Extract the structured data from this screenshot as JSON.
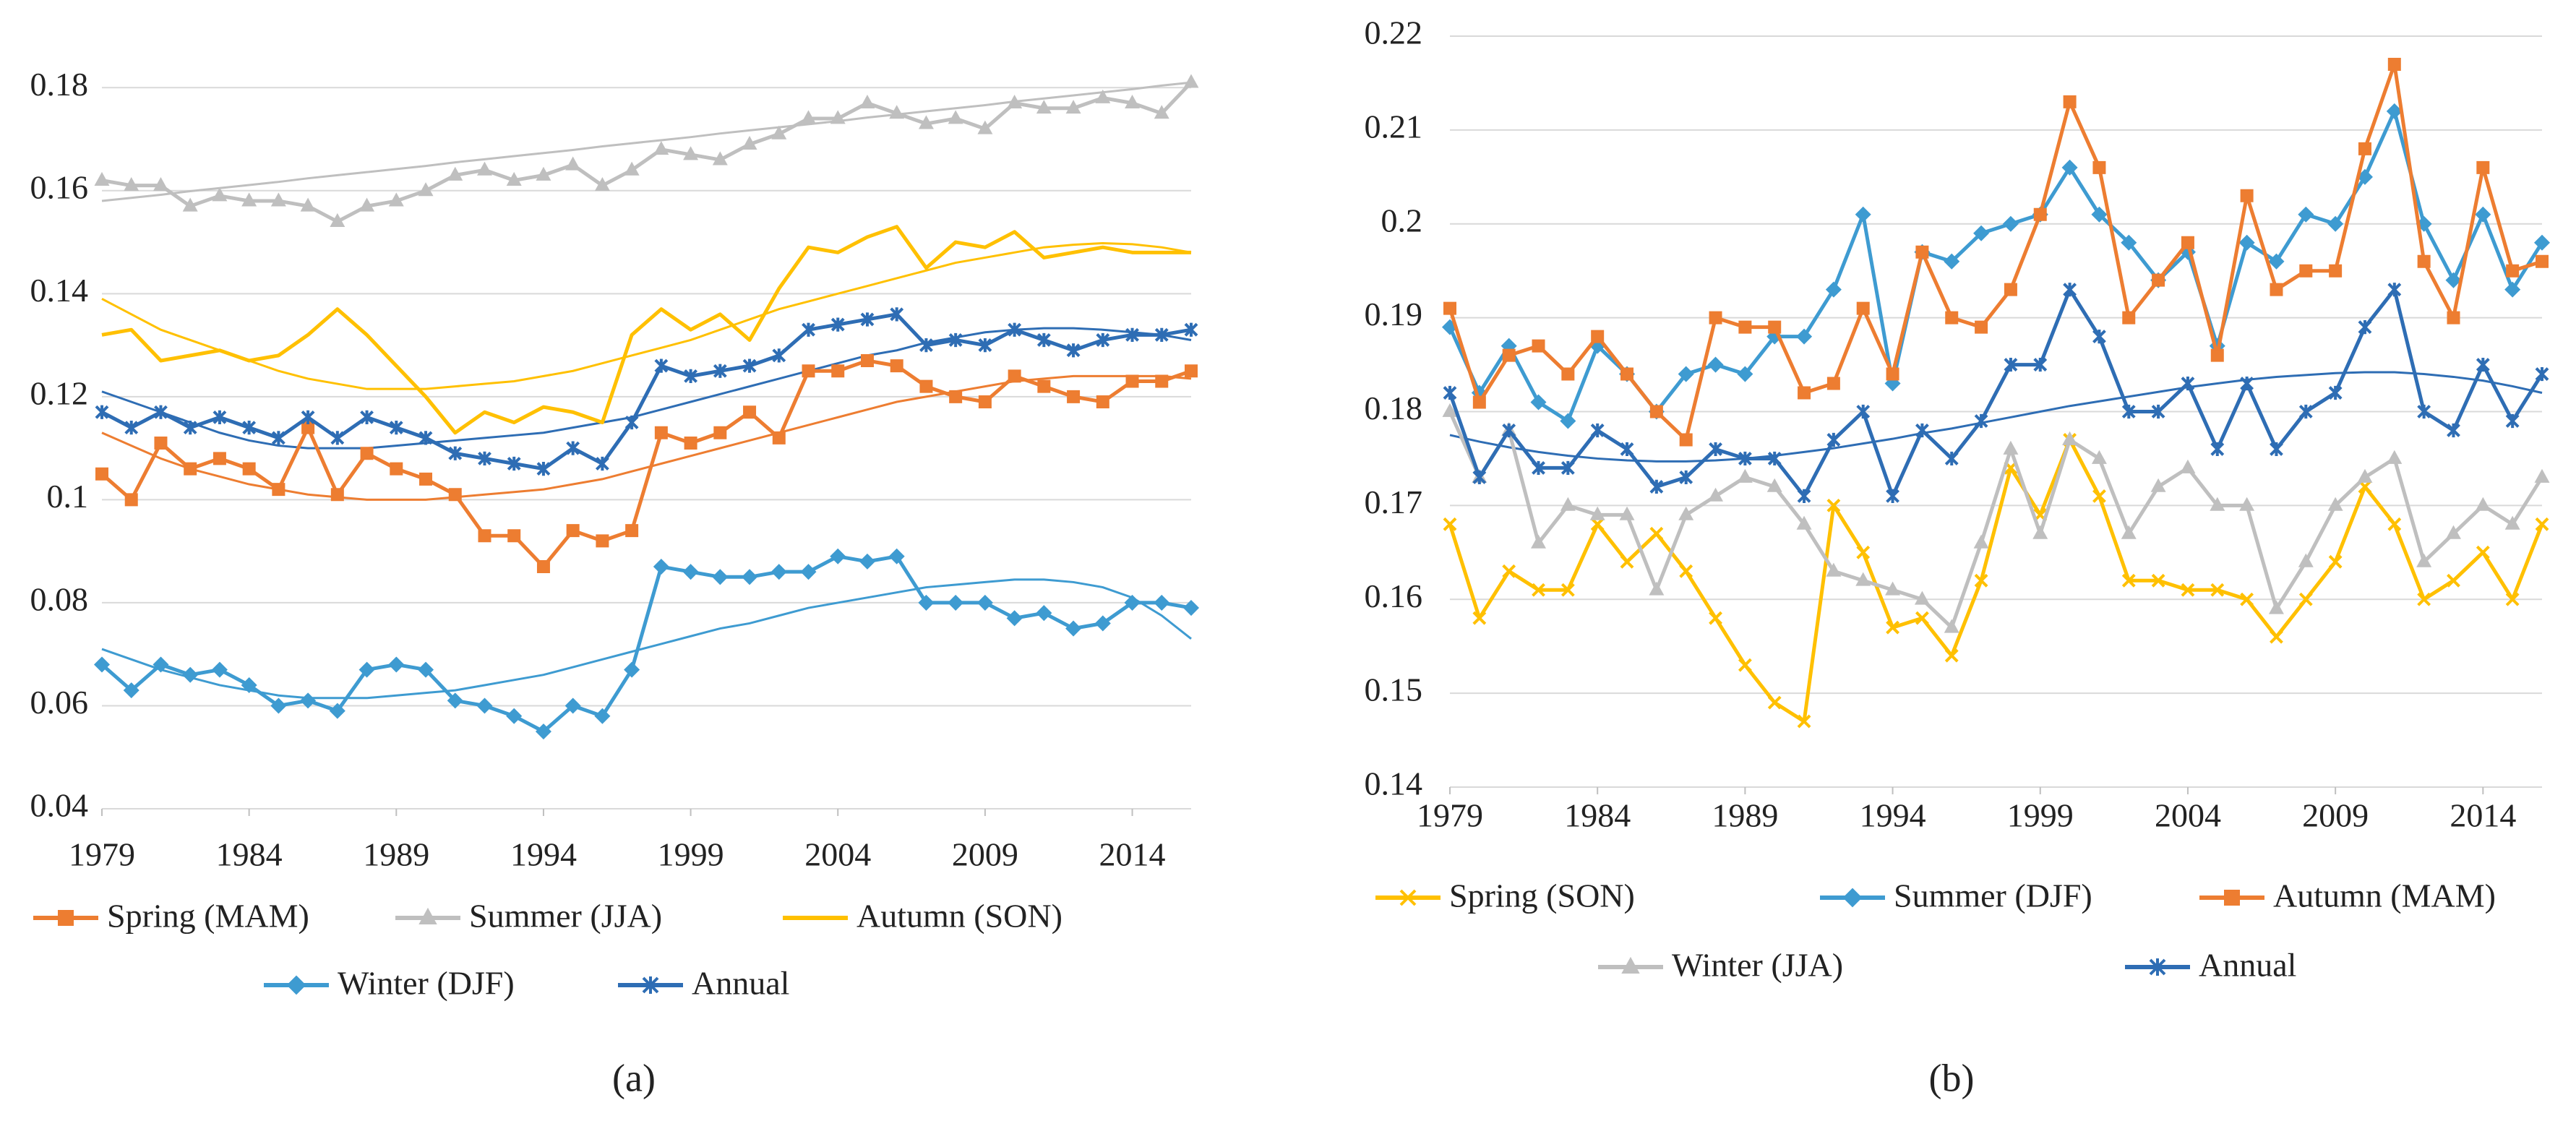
{
  "chart_data": [
    {
      "type": "line",
      "label": "(a)",
      "x": [
        1979,
        1980,
        1981,
        1982,
        1983,
        1984,
        1985,
        1986,
        1987,
        1988,
        1989,
        1990,
        1991,
        1992,
        1993,
        1994,
        1995,
        1996,
        1997,
        1998,
        1999,
        2000,
        2001,
        2002,
        2003,
        2004,
        2005,
        2006,
        2007,
        2008,
        2009,
        2010,
        2011,
        2012,
        2013,
        2014,
        2015,
        2016
      ],
      "xlim": [
        1979,
        2016
      ],
      "xticks": [
        1979,
        1984,
        1989,
        1994,
        1999,
        2004,
        2009,
        2014
      ],
      "ylim": [
        0.04,
        0.19
      ],
      "yticks": [
        0.04,
        0.06,
        0.08,
        0.1,
        0.12,
        0.14,
        0.16,
        0.18
      ],
      "grid": true,
      "series": [
        {
          "name": "Spring (MAM)",
          "color": "#ed7d31",
          "marker": "square",
          "values": [
            0.105,
            0.1,
            0.111,
            0.106,
            0.108,
            0.106,
            0.102,
            0.114,
            0.101,
            0.109,
            0.106,
            0.104,
            0.101,
            0.093,
            0.093,
            0.087,
            0.094,
            0.092,
            0.094,
            0.113,
            0.111,
            0.113,
            0.117,
            0.112,
            0.125,
            0.125,
            0.127,
            0.126,
            0.122,
            0.12,
            0.119,
            0.124,
            0.122,
            0.12,
            0.119,
            0.123,
            0.123,
            0.125
          ],
          "trend": [
            0.113,
            0.1105,
            0.108,
            0.106,
            0.1045,
            0.103,
            0.102,
            0.101,
            0.1005,
            0.1,
            0.1,
            0.1,
            0.1005,
            0.101,
            0.1015,
            0.102,
            0.103,
            0.104,
            0.1055,
            0.107,
            0.1085,
            0.11,
            0.1115,
            0.113,
            0.1145,
            0.116,
            0.1175,
            0.119,
            0.12,
            0.121,
            0.122,
            0.123,
            0.1235,
            0.124,
            0.124,
            0.124,
            0.124,
            0.1235
          ]
        },
        {
          "name": "Summer (JJA)",
          "color": "#bfbfbf",
          "marker": "triangle",
          "values": [
            0.162,
            0.161,
            0.161,
            0.157,
            0.159,
            0.158,
            0.158,
            0.157,
            0.154,
            0.157,
            0.158,
            0.16,
            0.163,
            0.164,
            0.162,
            0.163,
            0.165,
            0.161,
            0.164,
            0.168,
            0.167,
            0.166,
            0.169,
            0.171,
            0.174,
            0.174,
            0.177,
            0.175,
            0.173,
            0.174,
            0.172,
            0.177,
            0.176,
            0.176,
            0.178,
            0.177,
            0.175,
            0.181
          ],
          "trend": [
            0.158,
            0.1586,
            0.1592,
            0.1599,
            0.1605,
            0.1611,
            0.1617,
            0.1624,
            0.163,
            0.1636,
            0.1642,
            0.1648,
            0.1655,
            0.1661,
            0.1667,
            0.1673,
            0.1679,
            0.1686,
            0.1692,
            0.1698,
            0.1704,
            0.1711,
            0.1717,
            0.1723,
            0.1729,
            0.1735,
            0.1742,
            0.1748,
            0.1754,
            0.176,
            0.1766,
            0.1773,
            0.1779,
            0.1785,
            0.1791,
            0.1797,
            0.1804,
            0.181
          ]
        },
        {
          "name": "Autumn (SON)",
          "color": "#ffc000",
          "marker": "none",
          "values": [
            0.132,
            0.133,
            0.127,
            0.128,
            0.129,
            0.127,
            0.128,
            0.132,
            0.137,
            0.132,
            0.126,
            0.12,
            0.113,
            0.117,
            0.115,
            0.118,
            0.117,
            0.115,
            0.132,
            0.137,
            0.133,
            0.136,
            0.131,
            0.141,
            0.149,
            0.148,
            0.151,
            0.153,
            0.145,
            0.15,
            0.149,
            0.152,
            0.147,
            0.148,
            0.149,
            0.148,
            0.148,
            0.148
          ],
          "trend": [
            0.139,
            0.136,
            0.133,
            0.131,
            0.129,
            0.127,
            0.125,
            0.1235,
            0.1225,
            0.1215,
            0.1215,
            0.1215,
            0.122,
            0.1225,
            0.123,
            0.124,
            0.125,
            0.1265,
            0.128,
            0.1295,
            0.131,
            0.133,
            0.135,
            0.137,
            0.1385,
            0.14,
            0.1415,
            0.143,
            0.1445,
            0.146,
            0.147,
            0.148,
            0.149,
            0.1495,
            0.1498,
            0.1496,
            0.149,
            0.148
          ]
        },
        {
          "name": "Winter (DJF)",
          "color": "#3e9bd1",
          "marker": "diamond",
          "values": [
            0.068,
            0.063,
            0.068,
            0.066,
            0.067,
            0.064,
            0.06,
            0.061,
            0.059,
            0.067,
            0.068,
            0.067,
            0.061,
            0.06,
            0.058,
            0.055,
            0.06,
            0.058,
            0.067,
            0.087,
            0.086,
            0.085,
            0.085,
            0.086,
            0.086,
            0.089,
            0.088,
            0.089,
            0.08,
            0.08,
            0.08,
            0.077,
            0.078,
            0.075,
            0.076,
            0.08,
            0.08,
            0.079
          ],
          "trend": [
            0.071,
            0.069,
            0.067,
            0.0655,
            0.064,
            0.063,
            0.062,
            0.0615,
            0.0615,
            0.0615,
            0.062,
            0.0625,
            0.063,
            0.064,
            0.065,
            0.066,
            0.0675,
            0.069,
            0.0705,
            0.072,
            0.0735,
            0.075,
            0.076,
            0.0775,
            0.079,
            0.08,
            0.081,
            0.082,
            0.083,
            0.0835,
            0.084,
            0.0845,
            0.0845,
            0.084,
            0.083,
            0.081,
            0.0775,
            0.073
          ]
        },
        {
          "name": "Annual",
          "color": "#2e6db4",
          "marker": "star",
          "values": [
            0.117,
            0.114,
            0.117,
            0.114,
            0.116,
            0.114,
            0.112,
            0.116,
            0.112,
            0.116,
            0.114,
            0.112,
            0.109,
            0.108,
            0.107,
            0.106,
            0.11,
            0.107,
            0.115,
            0.126,
            0.124,
            0.125,
            0.126,
            0.128,
            0.133,
            0.134,
            0.135,
            0.136,
            0.13,
            0.131,
            0.13,
            0.133,
            0.131,
            0.129,
            0.131,
            0.132,
            0.132,
            0.133
          ],
          "trend": [
            0.121,
            0.119,
            0.117,
            0.115,
            0.113,
            0.1115,
            0.1105,
            0.11,
            0.11,
            0.11,
            0.1105,
            0.111,
            0.1115,
            0.112,
            0.1125,
            0.113,
            0.114,
            0.115,
            0.116,
            0.1175,
            0.119,
            0.1205,
            0.122,
            0.1235,
            0.125,
            0.1265,
            0.128,
            0.129,
            0.1305,
            0.1315,
            0.1325,
            0.133,
            0.1333,
            0.1333,
            0.133,
            0.1325,
            0.132,
            0.131
          ]
        }
      ]
    },
    {
      "type": "line",
      "label": "(b)",
      "x": [
        1979,
        1980,
        1981,
        1982,
        1983,
        1984,
        1985,
        1986,
        1987,
        1988,
        1989,
        1990,
        1991,
        1992,
        1993,
        1994,
        1995,
        1996,
        1997,
        1998,
        1999,
        2000,
        2001,
        2002,
        2003,
        2004,
        2005,
        2006,
        2007,
        2008,
        2009,
        2010,
        2011,
        2012,
        2013,
        2014,
        2015,
        2016
      ],
      "xlim": [
        1979,
        2016
      ],
      "xticks": [
        1979,
        1984,
        1989,
        1994,
        1999,
        2004,
        2009,
        2014
      ],
      "ylim": [
        0.14,
        0.22
      ],
      "yticks": [
        0.14,
        0.15,
        0.16,
        0.17,
        0.18,
        0.19,
        0.2,
        0.21,
        0.22
      ],
      "grid": true,
      "series": [
        {
          "name": "Spring (SON)",
          "color": "#ffc000",
          "marker": "cross",
          "values": [
            0.168,
            0.158,
            0.163,
            0.161,
            0.161,
            0.168,
            0.164,
            0.167,
            0.163,
            0.158,
            0.153,
            0.149,
            0.147,
            0.17,
            0.165,
            0.157,
            0.158,
            0.154,
            0.162,
            0.174,
            0.169,
            0.177,
            0.171,
            0.162,
            0.162,
            0.161,
            0.161,
            0.16,
            0.156,
            0.16,
            0.164,
            0.172,
            0.168,
            0.16,
            0.162,
            0.165,
            0.16,
            0.168
          ]
        },
        {
          "name": "Summer (DJF)",
          "color": "#3e9bd1",
          "marker": "diamond",
          "values": [
            0.189,
            0.182,
            0.187,
            0.181,
            0.179,
            0.187,
            0.184,
            0.18,
            0.184,
            0.185,
            0.184,
            0.188,
            0.188,
            0.193,
            0.201,
            0.183,
            0.197,
            0.196,
            0.199,
            0.2,
            0.201,
            0.206,
            0.201,
            0.198,
            0.194,
            0.197,
            0.187,
            0.198,
            0.196,
            0.201,
            0.2,
            0.205,
            0.212,
            0.2,
            0.194,
            0.201,
            0.193,
            0.198
          ]
        },
        {
          "name": "Autumn (MAM)",
          "color": "#ed7d31",
          "marker": "square",
          "values": [
            0.191,
            0.181,
            0.186,
            0.187,
            0.184,
            0.188,
            0.184,
            0.18,
            0.177,
            0.19,
            0.189,
            0.189,
            0.182,
            0.183,
            0.191,
            0.184,
            0.197,
            0.19,
            0.189,
            0.193,
            0.201,
            0.213,
            0.206,
            0.19,
            0.194,
            0.198,
            0.186,
            0.203,
            0.193,
            0.195,
            0.195,
            0.208,
            0.217,
            0.196,
            0.19,
            0.206,
            0.195,
            0.196
          ]
        },
        {
          "name": "Winter (JJA)",
          "color": "#bfbfbf",
          "marker": "triangle",
          "values": [
            0.18,
            0.173,
            0.178,
            0.166,
            0.17,
            0.169,
            0.169,
            0.161,
            0.169,
            0.171,
            0.173,
            0.172,
            0.168,
            0.163,
            0.162,
            0.161,
            0.16,
            0.157,
            0.166,
            0.176,
            0.167,
            0.177,
            0.175,
            0.167,
            0.172,
            0.174,
            0.17,
            0.17,
            0.159,
            0.164,
            0.17,
            0.173,
            0.175,
            0.164,
            0.167,
            0.17,
            0.168,
            0.173
          ]
        },
        {
          "name": "Annual",
          "color": "#2e6db4",
          "marker": "star",
          "values": [
            0.182,
            0.173,
            0.178,
            0.174,
            0.174,
            0.178,
            0.176,
            0.172,
            0.173,
            0.176,
            0.175,
            0.175,
            0.171,
            0.177,
            0.18,
            0.171,
            0.178,
            0.175,
            0.179,
            0.185,
            0.185,
            0.193,
            0.188,
            0.18,
            0.18,
            0.183,
            0.176,
            0.183,
            0.176,
            0.18,
            0.182,
            0.189,
            0.193,
            0.18,
            0.178,
            0.185,
            0.179,
            0.184
          ],
          "trend": [
            0.1775,
            0.1768,
            0.1762,
            0.1757,
            0.1753,
            0.175,
            0.1748,
            0.1747,
            0.1747,
            0.1748,
            0.175,
            0.1753,
            0.1757,
            0.1761,
            0.1766,
            0.1771,
            0.1777,
            0.1782,
            0.1788,
            0.1794,
            0.18,
            0.1806,
            0.1811,
            0.1816,
            0.1821,
            0.1826,
            0.183,
            0.1834,
            0.1837,
            0.1839,
            0.1841,
            0.1842,
            0.1842,
            0.184,
            0.1837,
            0.1833,
            0.1827,
            0.182
          ]
        }
      ]
    }
  ]
}
